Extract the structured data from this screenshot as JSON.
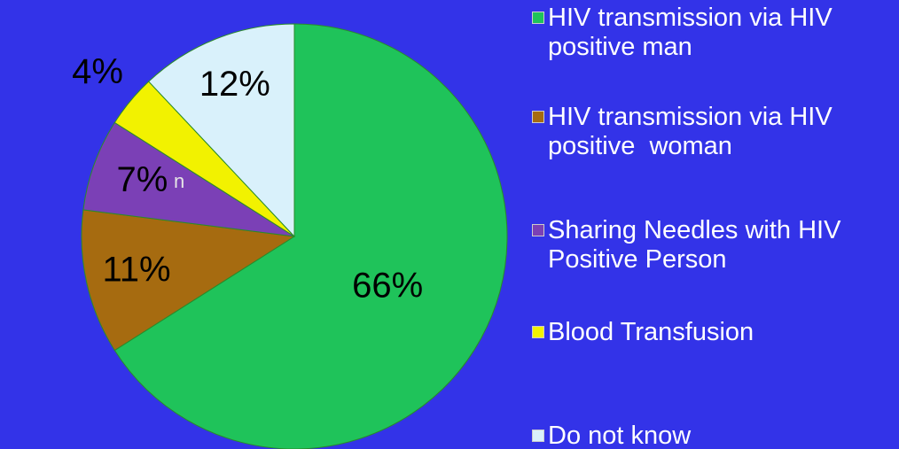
{
  "chart_data": {
    "type": "pie",
    "categories": [
      "HIV transmission via HIV positive man",
      "HIV transmission via HIV positive  woman",
      "Sharing Needles with HIV Positive Person",
      "Blood Transfusion",
      "Do not know"
    ],
    "values": [
      66,
      11,
      7,
      4,
      12
    ],
    "value_labels": [
      "66%",
      "11%",
      "7%",
      "4%",
      "12%"
    ],
    "colors": [
      "#1fc35a",
      "#a66b10",
      "#7b40b6",
      "#f2f200",
      "#d9f1fb"
    ],
    "legend": "right",
    "annotation": "n"
  }
}
